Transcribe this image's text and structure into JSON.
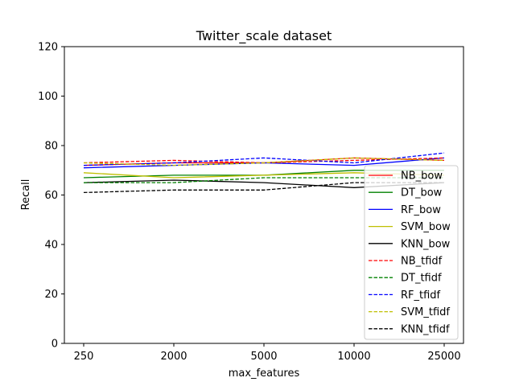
{
  "chart_data": {
    "type": "line",
    "title": "Twitter_scale dataset",
    "xlabel": "max_features",
    "ylabel": "Recall",
    "categories": [
      "250",
      "2000",
      "5000",
      "10000",
      "25000"
    ],
    "ylim": [
      0,
      120
    ],
    "yticks": [
      0,
      20,
      40,
      60,
      80,
      100,
      120
    ],
    "grid": false,
    "legend_position": "right",
    "series": [
      {
        "name": "NB_bow",
        "color": "#ff0000",
        "linestyle": "solid",
        "values": [
          72,
          73,
          73,
          75,
          74
        ]
      },
      {
        "name": "DT_bow",
        "color": "#008000",
        "linestyle": "solid",
        "values": [
          67,
          68,
          68,
          70,
          70
        ]
      },
      {
        "name": "RF_bow",
        "color": "#0000ff",
        "linestyle": "solid",
        "values": [
          71,
          72,
          73,
          72,
          75
        ]
      },
      {
        "name": "SVM_bow",
        "color": "#bfbf00",
        "linestyle": "solid",
        "values": [
          69,
          67,
          68,
          69,
          68
        ]
      },
      {
        "name": "KNN_bow",
        "color": "#000000",
        "linestyle": "solid",
        "values": [
          65,
          66,
          65,
          63,
          65
        ]
      },
      {
        "name": "NB_tfidf",
        "color": "#ff0000",
        "linestyle": "dashed",
        "values": [
          73,
          74,
          73,
          74,
          75
        ]
      },
      {
        "name": "DT_tfidf",
        "color": "#008000",
        "linestyle": "dashed",
        "values": [
          65,
          65,
          67,
          67,
          67
        ]
      },
      {
        "name": "RF_tfidf",
        "color": "#0000ff",
        "linestyle": "dashed",
        "values": [
          72,
          73,
          75,
          73,
          77
        ]
      },
      {
        "name": "SVM_tfidf",
        "color": "#bfbf00",
        "linestyle": "dashed",
        "values": [
          73,
          72,
          73,
          75,
          74
        ]
      },
      {
        "name": "KNN_tfidf",
        "color": "#000000",
        "linestyle": "dashed",
        "values": [
          61,
          62,
          62,
          65,
          65
        ]
      }
    ]
  }
}
